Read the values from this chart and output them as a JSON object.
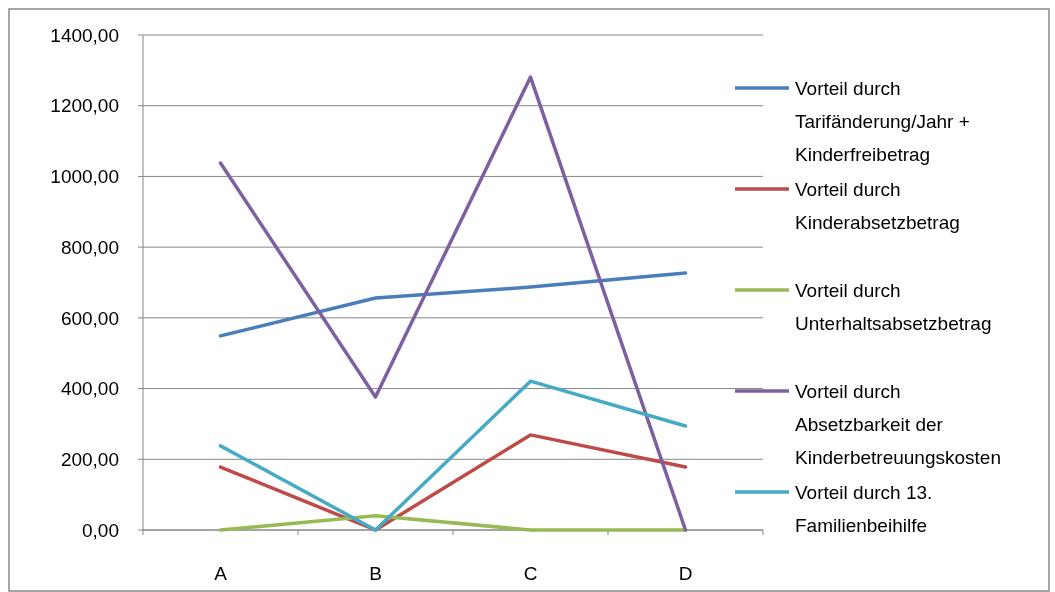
{
  "chart_data": {
    "type": "line",
    "categories": [
      "A",
      "B",
      "C",
      "D"
    ],
    "series": [
      {
        "name": "Vorteil durch Tarifänderung/Jahr + Kinderfreibetrag",
        "color": "#4a7ebb",
        "values": [
          549,
          656,
          687,
          727
        ]
      },
      {
        "name": "Vorteil durch Kinderabsetzbetrag",
        "color": "#be4b48",
        "values": [
          178,
          0,
          269,
          178
        ]
      },
      {
        "name": "Vorteil durch Unterhaltsabsetzbetrag",
        "color": "#98b954",
        "values": [
          0,
          40,
          0,
          0
        ]
      },
      {
        "name": "Vorteil durch Absetzbarkeit der Kinderbetreuungskosten",
        "color": "#7d60a0",
        "values": [
          1038,
          376,
          1281,
          0
        ]
      },
      {
        "name": "Vorteil durch 13. Familienbeihilfe",
        "color": "#46aac5",
        "values": [
          238,
          0,
          421,
          294
        ]
      }
    ],
    "ylim": [
      0,
      1400
    ],
    "yticks": [
      {
        "value": 0,
        "label": "0,00"
      },
      {
        "value": 200,
        "label": "200,00"
      },
      {
        "value": 400,
        "label": "400,00"
      },
      {
        "value": 600,
        "label": "600,00"
      },
      {
        "value": 800,
        "label": "800,00"
      },
      {
        "value": 1000,
        "label": "1000,00"
      },
      {
        "value": 1200,
        "label": "1200,00"
      },
      {
        "value": 1400,
        "label": "1400,00"
      }
    ],
    "grid": "y",
    "legend": "right",
    "marker": "none",
    "line_style": "solid"
  }
}
